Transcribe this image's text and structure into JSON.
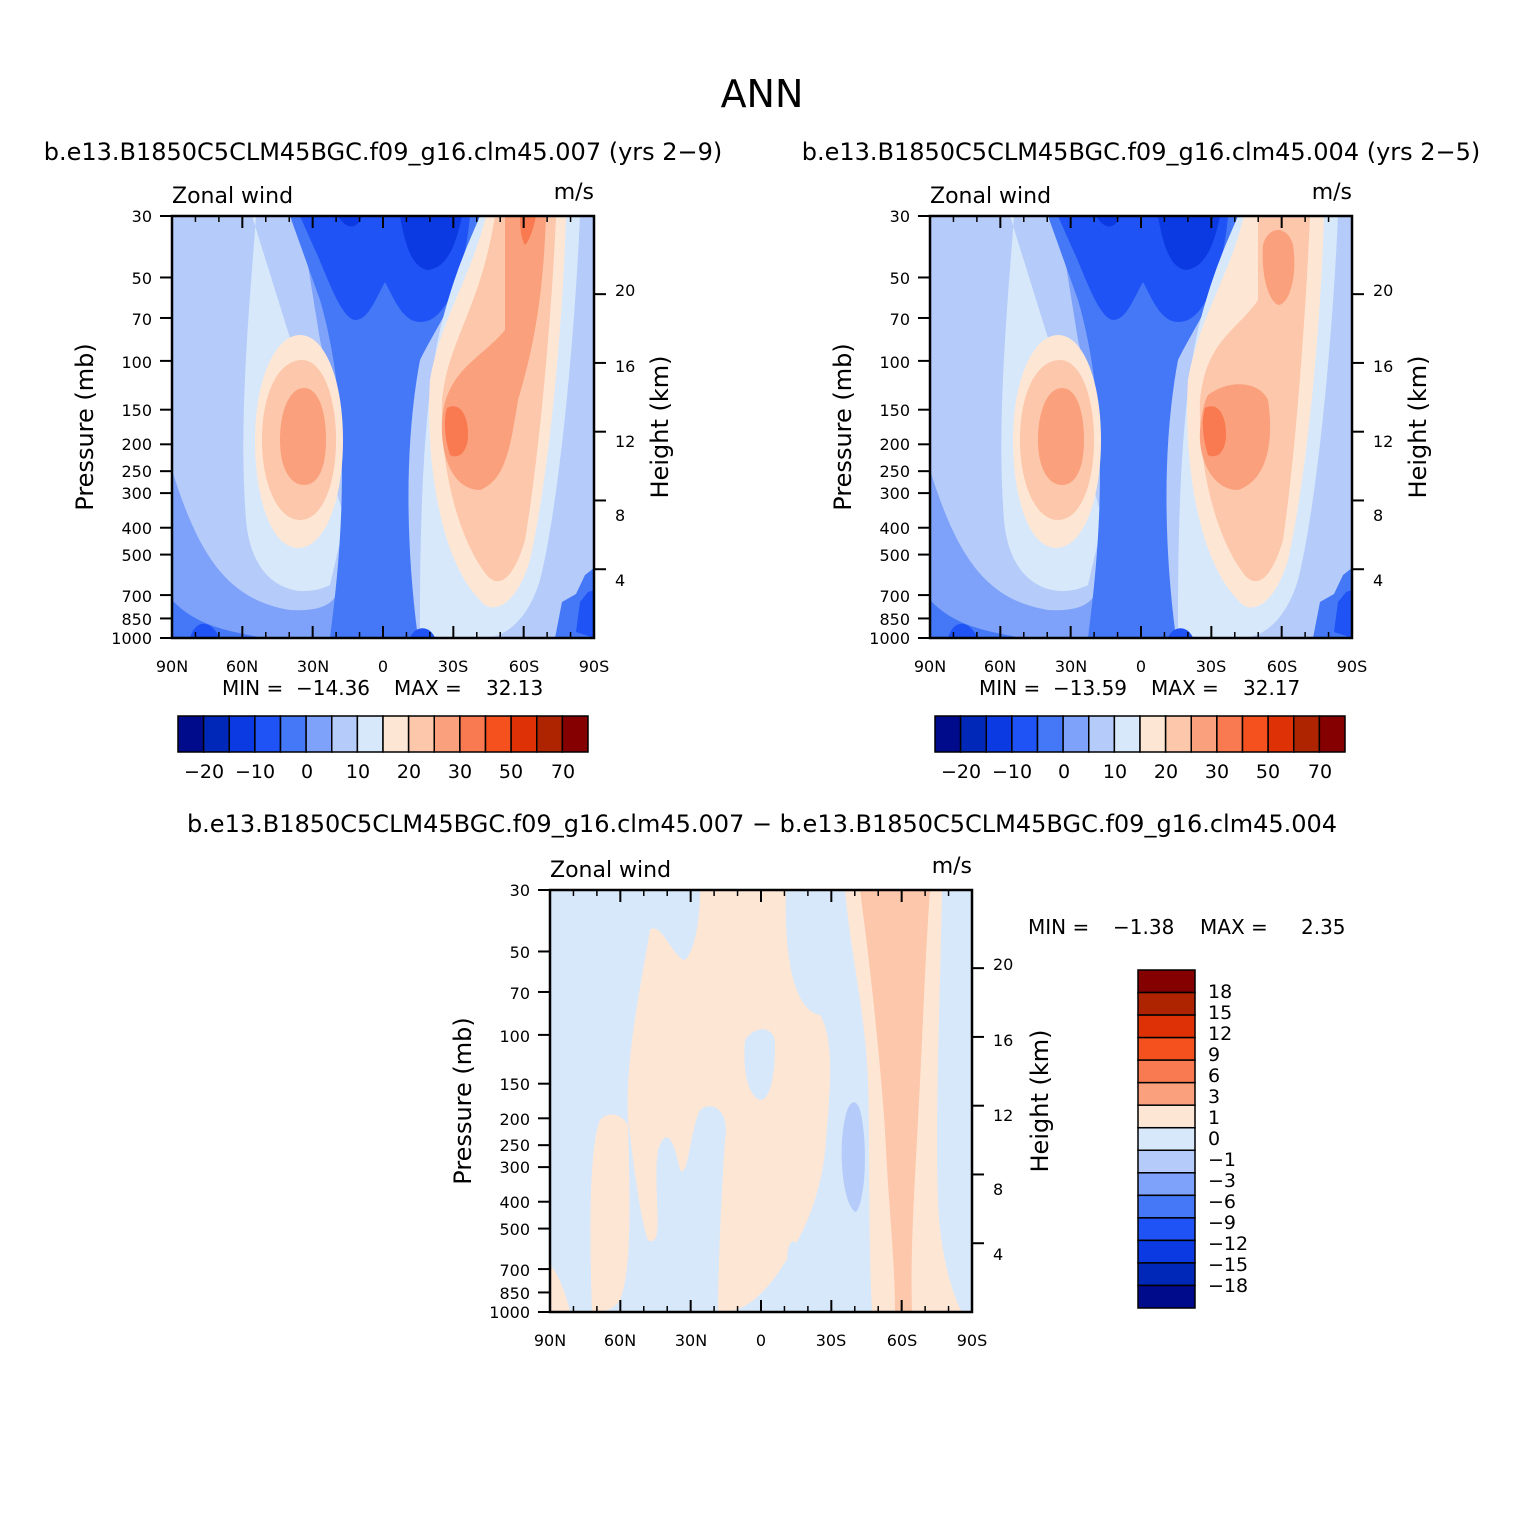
{
  "figure_title": "ANN",
  "chart_data": [
    {
      "type": "heatmap",
      "id": "case1",
      "subtitle": "b.e13.B1850C5CLM45BGC.f09_g16.clm45.007 (yrs 2-9)",
      "left_string": "Zonal wind",
      "right_string": "m/s",
      "xlabel": "",
      "ylabel": "Pressure (mb)",
      "y2label": "Height (km)",
      "x_tick_labels": [
        "90N",
        "60N",
        "30N",
        "0",
        "30S",
        "60S",
        "90S"
      ],
      "y_tick_labels": [
        "30",
        "50",
        "70",
        "100",
        "150",
        "200",
        "250",
        "300",
        "400",
        "500",
        "700",
        "850",
        "1000"
      ],
      "y2_tick_labels": [
        "20",
        "16",
        "12",
        "8",
        "4"
      ],
      "min_label": "MIN =",
      "min_value": "-14.36",
      "max_label": "MAX =",
      "max_value": "32.13",
      "colorbar": {
        "orientation": "horizontal",
        "labels": [
          "-20",
          "-10",
          "0",
          "10",
          "20",
          "30",
          "50",
          "70"
        ],
        "colors": [
          "#000b8c",
          "#0028b8",
          "#0b3ae3",
          "#1f53f5",
          "#4478f7",
          "#7ea2f9",
          "#b5cbfa",
          "#d7e8fa",
          "#fee6d5",
          "#fcc7aa",
          "#fba07c",
          "#f97a50",
          "#f5511f",
          "#de3206",
          "#ae2300",
          "#850001"
        ]
      }
    },
    {
      "type": "heatmap",
      "id": "case2",
      "subtitle": "b.e13.B1850C5CLM45BGC.f09_g16.clm45.004 (yrs 2-5)",
      "left_string": "Zonal wind",
      "right_string": "m/s",
      "xlabel": "",
      "ylabel": "Pressure (mb)",
      "y2label": "Height (km)",
      "x_tick_labels": [
        "90N",
        "60N",
        "30N",
        "0",
        "30S",
        "60S",
        "90S"
      ],
      "y_tick_labels": [
        "30",
        "50",
        "70",
        "100",
        "150",
        "200",
        "250",
        "300",
        "400",
        "500",
        "700",
        "850",
        "1000"
      ],
      "y2_tick_labels": [
        "20",
        "16",
        "12",
        "8",
        "4"
      ],
      "min_label": "MIN =",
      "min_value": "-13.59",
      "max_label": "MAX =",
      "max_value": "32.17",
      "colorbar": {
        "orientation": "horizontal",
        "labels": [
          "-20",
          "-10",
          "0",
          "10",
          "20",
          "30",
          "50",
          "70"
        ],
        "colors": [
          "#000b8c",
          "#0028b8",
          "#0b3ae3",
          "#1f53f5",
          "#4478f7",
          "#7ea2f9",
          "#b5cbfa",
          "#d7e8fa",
          "#fee6d5",
          "#fcc7aa",
          "#fba07c",
          "#f97a50",
          "#f5511f",
          "#de3206",
          "#ae2300",
          "#850001"
        ]
      }
    },
    {
      "type": "heatmap",
      "id": "diff",
      "subtitle": "b.e13.B1850C5CLM45BGC.f09_g16.clm45.007 - b.e13.B1850C5CLM45BGC.f09_g16.clm45.004",
      "left_string": "Zonal wind",
      "right_string": "m/s",
      "xlabel": "",
      "ylabel": "Pressure (mb)",
      "y2label": "Height (km)",
      "x_tick_labels": [
        "90N",
        "60N",
        "30N",
        "0",
        "30S",
        "60S",
        "90S"
      ],
      "y_tick_labels": [
        "30",
        "50",
        "70",
        "100",
        "150",
        "200",
        "250",
        "300",
        "400",
        "500",
        "700",
        "850",
        "1000"
      ],
      "y2_tick_labels": [
        "20",
        "16",
        "12",
        "8",
        "4"
      ],
      "min_label": "MIN =",
      "min_value": "-1.38",
      "max_label": "MAX =",
      "max_value": "2.35",
      "colorbar": {
        "orientation": "vertical",
        "labels": [
          "18",
          "15",
          "12",
          "9",
          "6",
          "3",
          "1",
          "0",
          "-1",
          "-3",
          "-6",
          "-9",
          "-12",
          "-15",
          "-18"
        ],
        "colors": [
          "#850001",
          "#ae2300",
          "#de3206",
          "#f5511f",
          "#f97a50",
          "#fba07c",
          "#fee6d5",
          "#d7e8fa",
          "#b5cbfa",
          "#7ea2f9",
          "#4478f7",
          "#1f53f5",
          "#0b3ae3",
          "#0028b8",
          "#000b8c"
        ]
      }
    }
  ]
}
